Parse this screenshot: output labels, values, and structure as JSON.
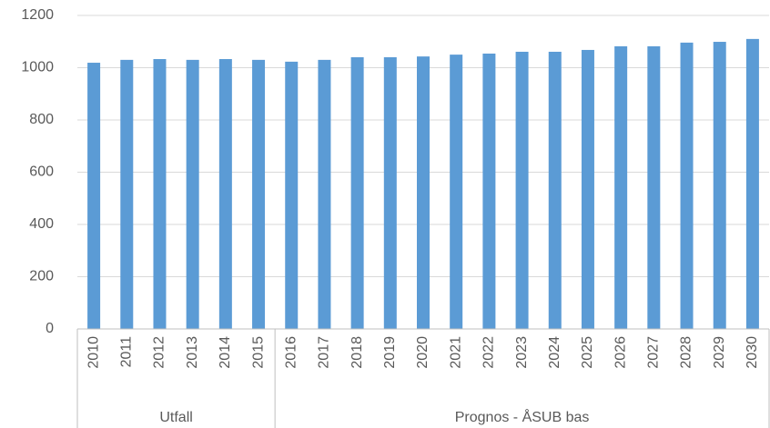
{
  "chart_data": {
    "type": "bar",
    "groups": [
      {
        "name": "Utfall",
        "categories": [
          "2010",
          "2011",
          "2012",
          "2013",
          "2014",
          "2015"
        ]
      },
      {
        "name": "Prognos - ÅSUB bas",
        "categories": [
          "2016",
          "2017",
          "2018",
          "2019",
          "2020",
          "2021",
          "2022",
          "2023",
          "2024",
          "2025",
          "2026",
          "2027",
          "2028",
          "2029",
          "2030"
        ]
      }
    ],
    "values": [
      1019,
      1030,
      1033,
      1030,
      1033,
      1030,
      1023,
      1030,
      1040,
      1040,
      1043,
      1050,
      1054,
      1061,
      1061,
      1068,
      1082,
      1082,
      1096,
      1099,
      1110
    ],
    "color": "#5b9bd5",
    "ylim": [
      0,
      1200
    ],
    "yticks": [
      0,
      200,
      400,
      600,
      800,
      1000,
      1200
    ],
    "grid": true
  }
}
